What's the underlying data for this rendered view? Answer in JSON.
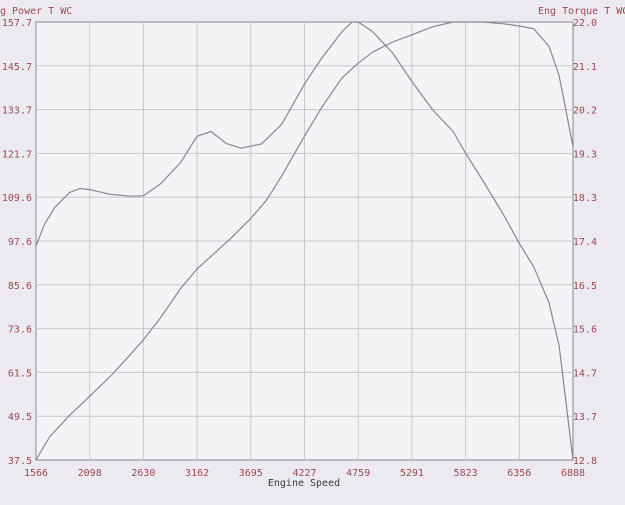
{
  "colors": {
    "background": "#eceaf0",
    "plot_background": "#f4f3f6",
    "axis_text": "#9a4a52",
    "label_text": "#3b3640",
    "grid": "#c9c7cc",
    "curve": "#8a8690"
  },
  "chart_data": {
    "type": "line",
    "left_axis_title": "g Power T WC",
    "right_axis_title": "Eng Torque T WC",
    "xlabel": "Engine Speed",
    "x_ticks": [
      "1566",
      "2098",
      "2630",
      "3162",
      "3695",
      "4227",
      "4759",
      "5291",
      "5823",
      "6356",
      "6888"
    ],
    "y_left_ticks": [
      "37.5",
      "49.5",
      "61.5",
      "73.6",
      "85.6",
      "97.6",
      "109.6",
      "121.7",
      "133.7",
      "145.7",
      "157.7"
    ],
    "y_right_ticks": [
      "12.8",
      "13.7",
      "14.7",
      "15.6",
      "16.5",
      "17.4",
      "18.3",
      "19.3",
      "20.2",
      "21.1",
      "22.0"
    ],
    "xlim": [
      1566,
      6888
    ],
    "ylim_left": [
      37.5,
      157.7
    ],
    "ylim_right": [
      12.8,
      22.0
    ],
    "grid": true,
    "series": [
      {
        "axis": "left",
        "x": [
          1566,
          1700,
          1900,
          2098,
          2300,
          2500,
          2630,
          2800,
          3000,
          3162,
          3300,
          3500,
          3695,
          3850,
          4000,
          4227,
          4400,
          4600,
          4759,
          4900,
          5100,
          5291,
          5500,
          5700,
          5823,
          6000,
          6200,
          6356,
          6500,
          6650,
          6750,
          6888
        ],
        "y": [
          37.5,
          43.8,
          49.8,
          55.0,
          60.4,
          66.4,
          70.5,
          76.5,
          84.6,
          89.9,
          93.4,
          98.4,
          103.8,
          108.8,
          115.4,
          126.4,
          134.4,
          142.4,
          146.4,
          149.4,
          152.2,
          154.2,
          156.4,
          157.7,
          157.7,
          157.7,
          157.2,
          156.6,
          155.8,
          151.0,
          143.0,
          123.5
        ]
      },
      {
        "axis": "right",
        "x": [
          1566,
          1650,
          1750,
          1900,
          2000,
          2098,
          2300,
          2500,
          2630,
          2800,
          3000,
          3162,
          3300,
          3450,
          3600,
          3800,
          4000,
          4227,
          4400,
          4600,
          4700,
          4759,
          4900,
          5100,
          5291,
          5500,
          5700,
          5823,
          6000,
          6200,
          6356,
          6500,
          6650,
          6750,
          6888
        ],
        "y": [
          17.3,
          17.75,
          18.1,
          18.42,
          18.5,
          18.48,
          18.38,
          18.34,
          18.35,
          18.6,
          19.05,
          19.6,
          19.7,
          19.45,
          19.35,
          19.44,
          19.85,
          20.7,
          21.25,
          21.8,
          22.0,
          22.0,
          21.8,
          21.35,
          20.75,
          20.15,
          19.7,
          19.25,
          18.65,
          17.95,
          17.35,
          16.85,
          16.1,
          15.2,
          12.8
        ]
      }
    ]
  }
}
